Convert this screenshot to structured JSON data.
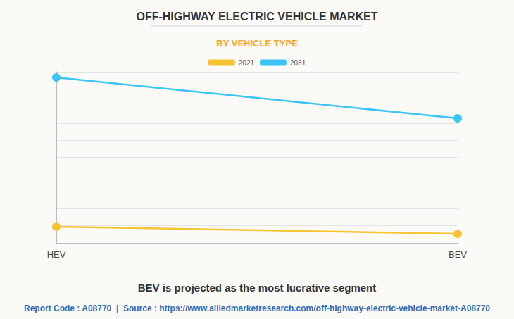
{
  "chart_data": {
    "type": "line",
    "title": "OFF-HIGHWAY ELECTRIC VEHICLE MARKET",
    "subtitle": "BY VEHICLE TYPE",
    "annotations": [
      "BEV is projected as the most lucrative segment",
      "Report Code : A08770  |  Source : https://www.alliedmarketresearch.com/off-highway-electric-vehicle-market-A08770"
    ],
    "categories": [
      "HEV",
      "BEV"
    ],
    "series": [
      {
        "name": "2021",
        "color": "#f6c431",
        "values": [
          9.5,
          5.3
        ]
      },
      {
        "name": "2031",
        "color": "#3bc4f7",
        "values": [
          96.7,
          72.8
        ]
      }
    ],
    "ylim": [
      0,
      100
    ],
    "yticks": [
      0,
      10,
      20,
      30,
      40,
      50,
      60,
      70,
      80,
      90,
      100
    ],
    "grid": true,
    "legend": "top",
    "tick_labels": "x",
    "marker": "circle",
    "line_style": "solid"
  }
}
